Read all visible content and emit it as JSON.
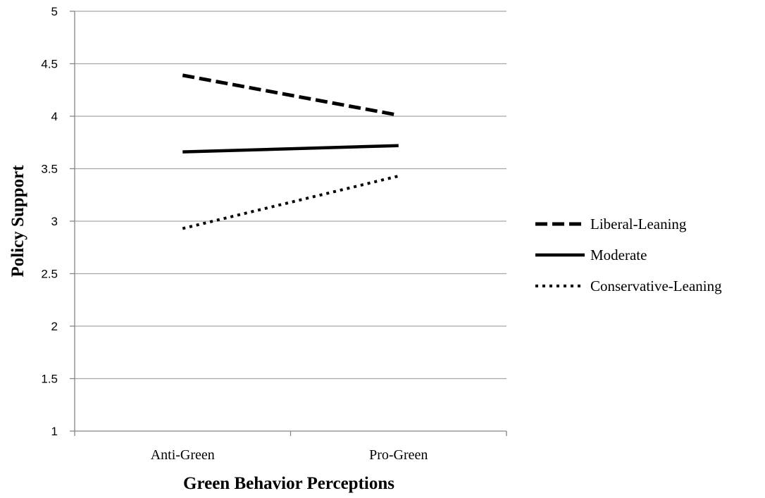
{
  "chart_data": {
    "type": "line",
    "title": "",
    "xlabel": "Green Behavior Perceptions",
    "ylabel": "Policy Support",
    "categories": [
      "Anti-Green",
      "Pro-Green"
    ],
    "ylim": [
      1,
      5
    ],
    "yticks": [
      "1",
      "1.5",
      "2",
      "2.5",
      "3",
      "3.5",
      "4",
      "4.5",
      "5"
    ],
    "grid": true,
    "legend_position": "right",
    "series": [
      {
        "name": "Liberal-Leaning",
        "values": [
          4.39,
          4.01
        ],
        "style": "dashed",
        "color": "#000000"
      },
      {
        "name": "Moderate",
        "values": [
          3.66,
          3.72
        ],
        "style": "solid",
        "color": "#000000"
      },
      {
        "name": "Conservative-Leaning",
        "values": [
          2.93,
          3.43
        ],
        "style": "dotted",
        "color": "#000000"
      }
    ]
  }
}
